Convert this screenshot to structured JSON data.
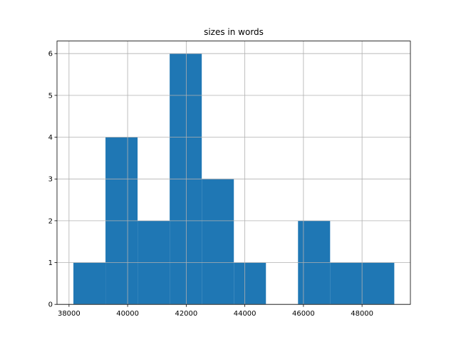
{
  "chart_data": {
    "type": "histogram",
    "title": "sizes in words",
    "bins": [
      38150,
      39245,
      40340,
      41435,
      42530,
      43625,
      44720,
      45815,
      46910,
      48005,
      49100
    ],
    "counts": [
      1,
      4,
      2,
      6,
      3,
      1,
      0,
      2,
      1,
      1
    ],
    "color": "#1f77b4",
    "xlim": [
      37590,
      49650
    ],
    "xticks": [
      38000,
      40000,
      42000,
      44000,
      46000,
      48000
    ],
    "ylim": [
      0,
      6.3
    ],
    "yticks": [
      0,
      1,
      2,
      3,
      4,
      5,
      6
    ],
    "grid": true
  }
}
